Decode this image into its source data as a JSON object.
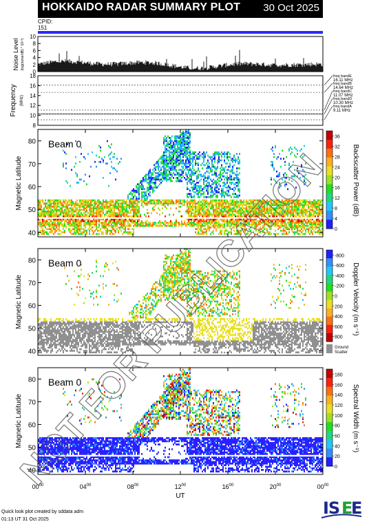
{
  "header": {
    "title": "HOKKAIDO RADAR SUMMARY PLOT",
    "date": "30 Oct 2025"
  },
  "cpid": {
    "label": "CPID:",
    "value": "151"
  },
  "noise_panel": {
    "ylabel": "Noise Level",
    "ylabel_sub": "(log(noise/dB) * 10¹⁰)",
    "yticks": [
      "0",
      "2",
      "4",
      "6",
      "8",
      "10"
    ],
    "ylim": [
      0,
      10
    ],
    "color": "#000000"
  },
  "frequency_panel": {
    "ylabel": "Frequency",
    "ylabel_unit": "(MHz)",
    "yticks": [
      "8",
      "10",
      "12",
      "14",
      "16",
      "18"
    ],
    "ylim": [
      8,
      18
    ],
    "bands": [
      {
        "label": "freq bandE",
        "value": "16.11 MHz",
        "mhz": 16.11
      },
      {
        "label": "freq bandB",
        "value": "14.64 MHz",
        "mhz": 14.64
      },
      {
        "label": "freq bandC",
        "value": "11.07 MHz",
        "mhz": 11.07
      },
      {
        "label": "freq bandD",
        "value": "10.30 MHz",
        "mhz": 10.3
      },
      {
        "label": "freq bandA",
        "value": "9.11 MHz",
        "mhz": 9.11
      }
    ]
  },
  "chart_data": [
    {
      "type": "heatmap",
      "title": "Beam  0",
      "ylabel": "Magnetic Latitude",
      "ylim": [
        38,
        85
      ],
      "yticks": [
        "40",
        "50",
        "60",
        "70",
        "80"
      ],
      "colorbar_label": "Backscatter Power (dB)",
      "colorbar_ticks": [
        "0",
        "4",
        "8",
        "12",
        "16",
        "20",
        "24",
        "28",
        "32",
        "36"
      ],
      "colorbar_range": [
        0,
        38
      ],
      "colormap": [
        "#2020ff",
        "#3090ff",
        "#20c8ff",
        "#20d880",
        "#20e020",
        "#a0e020",
        "#e8e020",
        "#ffb020",
        "#ff7010",
        "#ff2010",
        "#c00000"
      ]
    },
    {
      "type": "heatmap",
      "title": "Beam  0",
      "ylabel": "Magnetic Latitude",
      "ylim": [
        38,
        85
      ],
      "yticks": [
        "40",
        "50",
        "60",
        "70",
        "80"
      ],
      "colorbar_label": "Doppler Velocity (m s⁻¹)",
      "colorbar_ticks": [
        "800",
        "600",
        "400",
        "200",
        "0",
        "-200",
        "-400",
        "-600",
        "-800"
      ],
      "colorbar_range": [
        -900,
        900
      ],
      "ground_scatter_label": [
        "Ground",
        "Scatter"
      ],
      "ground_scatter_color": "#909090",
      "colormap": [
        "#2020ff",
        "#3090ff",
        "#20c8ff",
        "#20d880",
        "#20e020",
        "#a0e020",
        "#e8e020",
        "#ffb020",
        "#ff7010",
        "#ff2010",
        "#c00000"
      ]
    },
    {
      "type": "heatmap",
      "title": "Beam  0",
      "ylabel": "Magnetic Latitude",
      "ylim": [
        38,
        85
      ],
      "yticks": [
        "40",
        "50",
        "60",
        "70",
        "80"
      ],
      "colorbar_label": "Spectral Width (m s⁻¹)",
      "colorbar_ticks": [
        "0",
        "20",
        "40",
        "60",
        "80",
        "100",
        "120",
        "140",
        "160",
        "180"
      ],
      "colorbar_range": [
        0,
        190
      ],
      "colormap": [
        "#2020ff",
        "#3090ff",
        "#20c8ff",
        "#20d880",
        "#20e020",
        "#a0e020",
        "#e8e020",
        "#ffb020",
        "#ff7010",
        "#ff2010",
        "#c00000"
      ]
    }
  ],
  "time_axis": {
    "xlabel": "UT",
    "ticks": [
      {
        "hh": "00",
        "mm": "00",
        "hour": 0
      },
      {
        "hh": "04",
        "mm": "00",
        "hour": 4
      },
      {
        "hh": "08",
        "mm": "00",
        "hour": 8
      },
      {
        "hh": "12",
        "mm": "00",
        "hour": 12
      },
      {
        "hh": "16",
        "mm": "00",
        "hour": 16
      },
      {
        "hh": "20",
        "mm": "00",
        "hour": 20
      },
      {
        "hh": "00",
        "mm": "00",
        "hour": 24
      }
    ]
  },
  "watermark": "NOT FOR PUBLICATION",
  "footer": {
    "line1": "Quick look plot created by sddata adm",
    "line2": "01:13 UT 31 Oct 2025"
  },
  "logo": {
    "text": "ISEE"
  }
}
